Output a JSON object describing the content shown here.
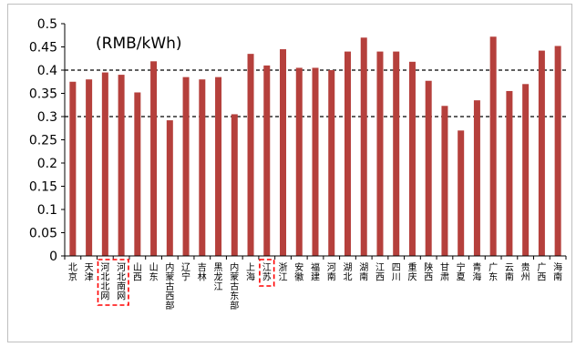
{
  "chart_data": {
    "type": "bar",
    "annotation": "(RMB/kWh)",
    "categories": [
      "北京",
      "天津",
      "河北北网",
      "河北南网",
      "山西",
      "山东",
      "内蒙古西部",
      "辽宁",
      "吉林",
      "黑龙江",
      "内蒙古东部",
      "上海",
      "江苏",
      "浙江",
      "安徽",
      "福建",
      "河南",
      "湖北",
      "湖南",
      "江西",
      "四川",
      "重庆",
      "陕西",
      "甘肃",
      "宁夏",
      "青海",
      "广东",
      "云南",
      "贵州",
      "广西",
      "海南"
    ],
    "values": [
      0.375,
      0.38,
      0.395,
      0.39,
      0.352,
      0.419,
      0.292,
      0.385,
      0.38,
      0.385,
      0.305,
      0.435,
      0.41,
      0.445,
      0.405,
      0.405,
      0.4,
      0.44,
      0.47,
      0.44,
      0.44,
      0.418,
      0.377,
      0.323,
      0.27,
      0.335,
      0.472,
      0.355,
      0.37,
      0.442,
      0.452
    ],
    "y_ticks": [
      "0",
      "0.05",
      "0.1",
      "0.15",
      "0.2",
      "0.25",
      "0.3",
      "0.35",
      "0.4",
      "0.45",
      "0.5"
    ],
    "ylim": [
      0,
      0.5
    ],
    "reference_lines": [
      0.3,
      0.4
    ],
    "highlighted_categories": [
      "河北北网",
      "河北南网",
      "江苏"
    ],
    "bar_color": "#b5403c",
    "highlight_color": "#ff0000",
    "title": "",
    "xlabel": "",
    "ylabel": ""
  }
}
